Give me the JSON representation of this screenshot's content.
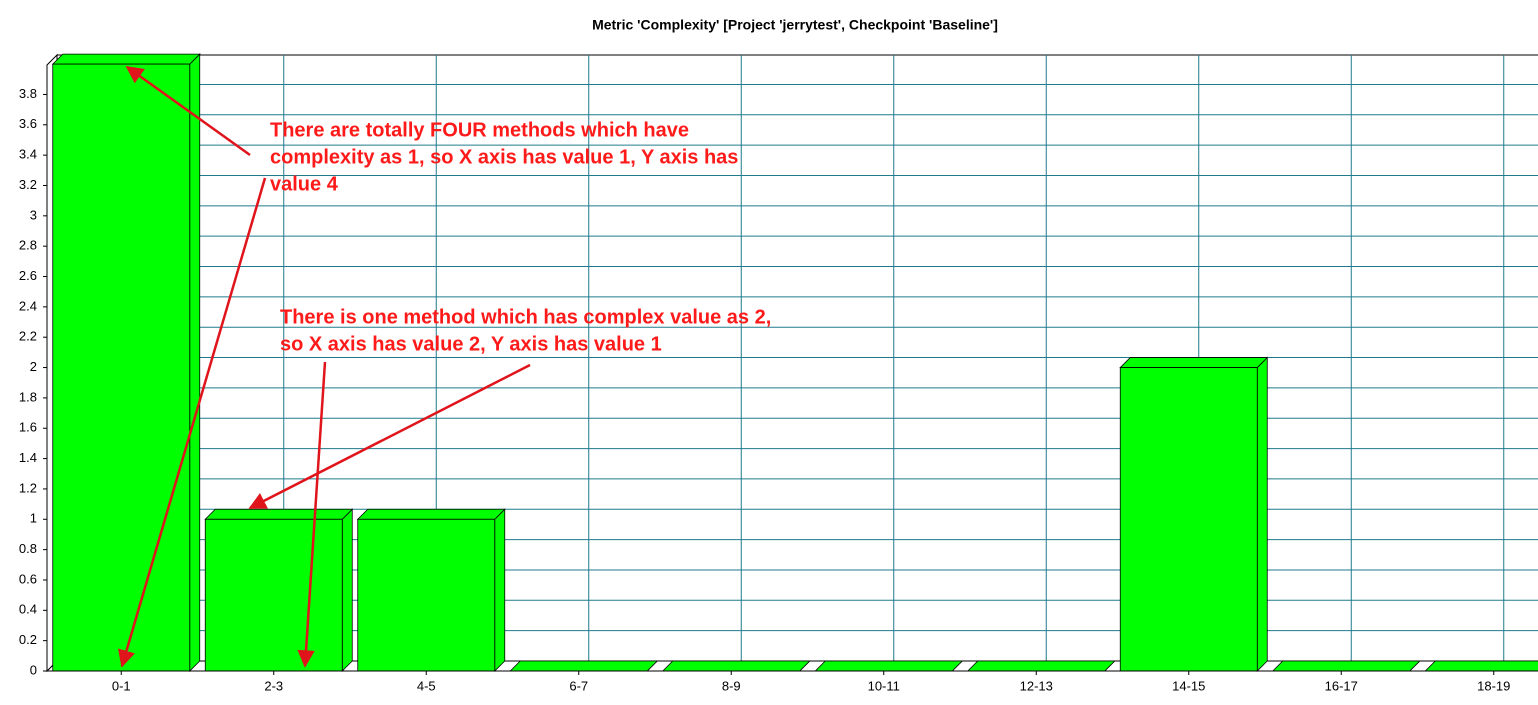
{
  "chart_data": {
    "type": "bar",
    "title": "Metric 'Complexity' [Project 'jerrytest', Checkpoint 'Baseline']",
    "categories": [
      "0-1",
      "2-3",
      "4-5",
      "6-7",
      "8-9",
      "10-11",
      "12-13",
      "14-15",
      "16-17",
      "18-19"
    ],
    "values": [
      4,
      1,
      1,
      0,
      0,
      0,
      0,
      2,
      0,
      0
    ],
    "color": "#00ff00",
    "ylim": [
      0,
      4.06
    ],
    "yticks": [
      0,
      0.2,
      0.4,
      0.6,
      0.8,
      1,
      1.2,
      1.4,
      1.6,
      1.8,
      2,
      2.2,
      2.4,
      2.6,
      2.8,
      3,
      3.2,
      3.4,
      3.6,
      3.8
    ],
    "grid": true,
    "annotations": [
      [
        "There are totally FOUR methods which have",
        "complexity as 1, so X axis has value 1, Y axis has",
        "value 4"
      ],
      [
        "There is one method which has complex value as 2,",
        "so X axis has value 2, Y axis has value 1"
      ]
    ]
  }
}
